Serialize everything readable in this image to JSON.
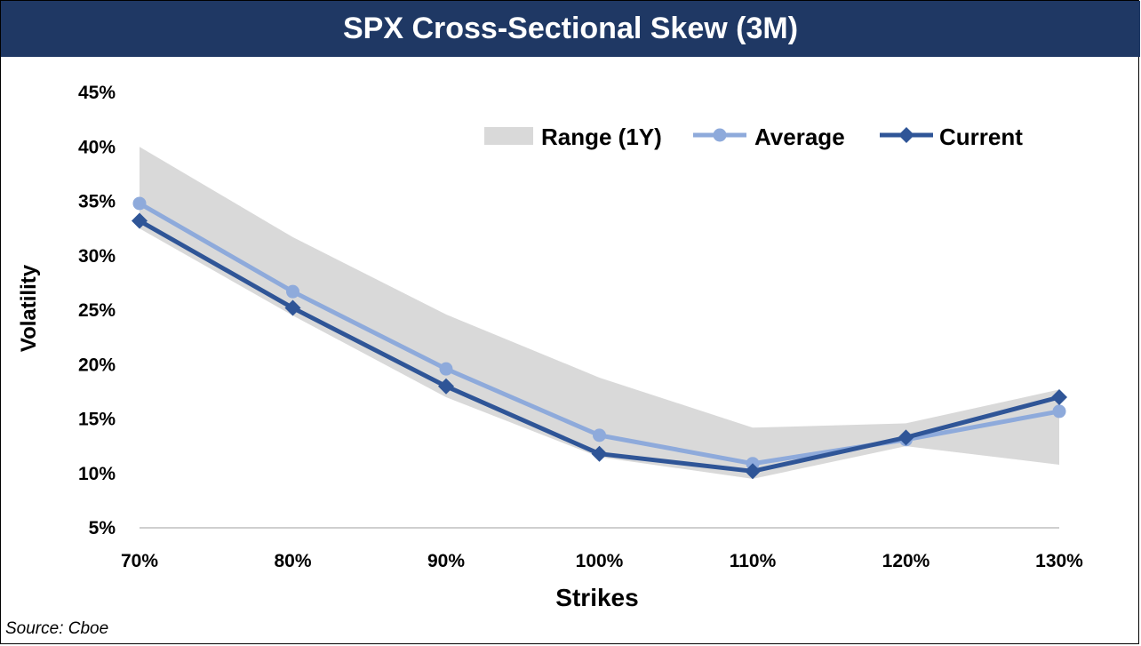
{
  "chart_data": {
    "type": "line",
    "title": "SPX Cross-Sectional Skew (3M)",
    "xlabel": "Strikes",
    "ylabel": "Volatility",
    "categories": [
      "70%",
      "80%",
      "90%",
      "100%",
      "110%",
      "120%",
      "130%"
    ],
    "yticks": [
      "5%",
      "10%",
      "15%",
      "20%",
      "25%",
      "30%",
      "35%",
      "40%",
      "45%"
    ],
    "ylim": [
      5,
      45
    ],
    "grid": false,
    "legend_position": "top-right",
    "range": {
      "name": "Range (1Y)",
      "color": "#d9d9d9",
      "low": [
        32.5,
        24.5,
        17.0,
        11.5,
        9.5,
        12.5,
        10.8
      ],
      "high": [
        40.0,
        31.7,
        24.6,
        18.8,
        14.2,
        14.6,
        17.7
      ]
    },
    "series": [
      {
        "name": "Average",
        "color": "#8eaadb",
        "marker": "circle",
        "values": [
          34.8,
          26.7,
          19.6,
          13.5,
          10.9,
          13.1,
          15.7
        ]
      },
      {
        "name": "Current",
        "color": "#2f5597",
        "marker": "diamond",
        "values": [
          33.2,
          25.2,
          18.0,
          11.8,
          10.2,
          13.3,
          17.0
        ]
      }
    ],
    "source": "Source: Cboe"
  }
}
